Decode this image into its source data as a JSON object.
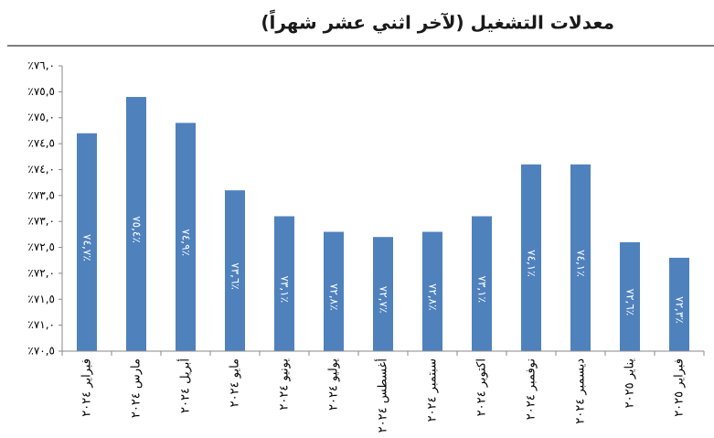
{
  "chart_data": {
    "type": "bar",
    "title": "معدلات التشغيل (لآخر اثني عشر شهراً)",
    "categories": [
      "فبراير ٢٠٢٤",
      "مارس ٢٠٢٤",
      "أبريل ٢٠٢٤",
      "مايو ٢٠٢٤",
      "يونيو ٢٠٢٤",
      "يوليو ٢٠٢٤",
      "أغسطس ٢٠٢٤",
      "سبتمبر ٢٠٢٤",
      "اكتوبر ٢٠٢٤",
      "نوفمبر ٢٠٢٤",
      "ديسمبر ٢٠٢٤",
      "يناير ٢٠٢٥",
      "فبراير ٢٠٢٥"
    ],
    "values": [
      74.7,
      75.4,
      74.9,
      73.6,
      73.1,
      72.8,
      72.7,
      72.8,
      73.1,
      74.1,
      74.1,
      72.6,
      72.3
    ],
    "value_labels": [
      "٧٤,٧٪",
      "٧٥,٤٪",
      "٧٤,٩٪",
      "٧٣,٦٪",
      "٧٣,١٪",
      "٧٢,٨٪",
      "٧٢,٧٪",
      "٧٢,٨٪",
      "٧٣,١٪",
      "٧٤,١٪",
      "٧٤,١٪",
      "٧٢,٦٪",
      "٧٢,٣٪"
    ],
    "color": "#4f81bd",
    "ylim": [
      70.5,
      76.0
    ],
    "yticks": [
      {
        "value": 70.5,
        "label": "٪٧٠,٥"
      },
      {
        "value": 71.0,
        "label": "٪٧١,٠"
      },
      {
        "value": 71.5,
        "label": "٪٧١,٥"
      },
      {
        "value": 72.0,
        "label": "٪٧٢,٠"
      },
      {
        "value": 72.5,
        "label": "٪٧٢,٥"
      },
      {
        "value": 73.0,
        "label": "٪٧٣,٠"
      },
      {
        "value": 73.5,
        "label": "٪٧٣,٥"
      },
      {
        "value": 74.0,
        "label": "٪٧٤,٠"
      },
      {
        "value": 74.5,
        "label": "٪٧٤,٥"
      },
      {
        "value": 75.0,
        "label": "٪٧٥,٠"
      },
      {
        "value": 75.5,
        "label": "٪٧٥,٥"
      },
      {
        "value": 76.0,
        "label": "٪٧٦,٠"
      }
    ],
    "grid": false
  }
}
